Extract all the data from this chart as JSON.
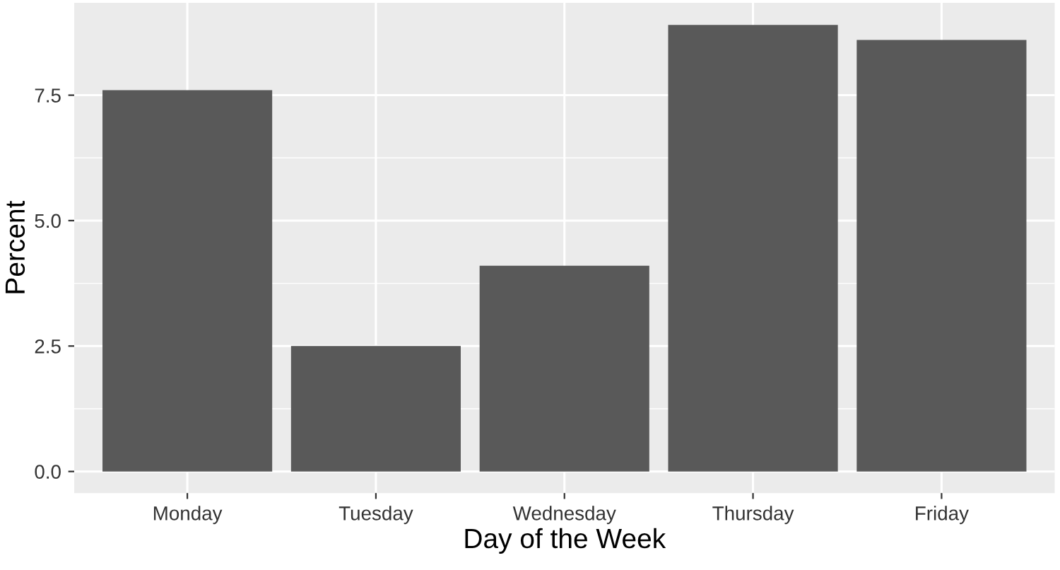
{
  "chart_data": {
    "type": "bar",
    "xlabel": "Day of the Week",
    "ylabel": "Percent",
    "categories": [
      "Monday",
      "Tuesday",
      "Wednesday",
      "Thursday",
      "Friday"
    ],
    "values": [
      7.6,
      2.5,
      4.1,
      8.9,
      8.6
    ],
    "color": "#595959",
    "ylim": [
      -0.43,
      9.34
    ],
    "yticks": [
      {
        "value": 0,
        "label": "0.0"
      },
      2.5,
      {
        "value": 5,
        "label": "5.0"
      },
      7.5
    ],
    "grid": true
  }
}
